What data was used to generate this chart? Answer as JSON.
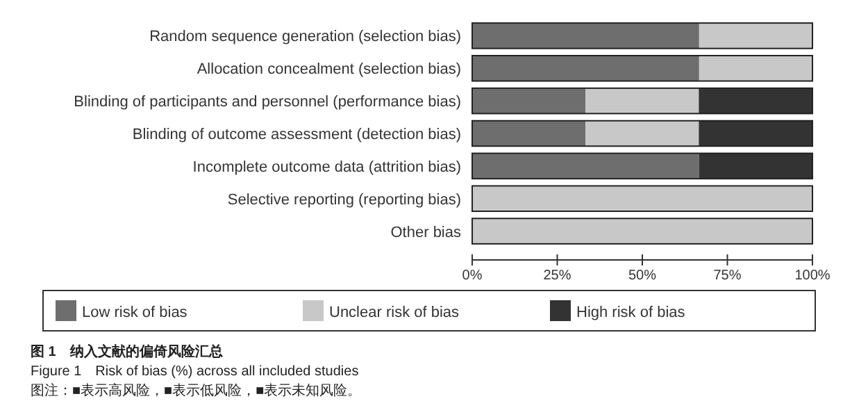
{
  "chart_data": {
    "type": "bar",
    "orientation": "horizontal",
    "stacked": true,
    "title": "图 1　纳入文献的偏倚风险汇总",
    "subtitle": "Figure 1　Risk of bias (%) across all included studies",
    "annotations": [
      "图注：■表示高风险，■表示低风险，■表示未知风险。"
    ],
    "categories": [
      "Random sequence generation (selection bias)",
      "Allocation concealment (selection bias)",
      "Blinding of participants and personnel (performance bias)",
      "Blinding of outcome assessment (detection bias)",
      "Incomplete outcome data (attrition bias)",
      "Selective reporting (reporting bias)",
      "Other bias"
    ],
    "series": [
      {
        "name": "Low risk of bias",
        "color": "#6e6e6e",
        "values": [
          66.7,
          66.7,
          33.3,
          33.3,
          66.7,
          0,
          0
        ]
      },
      {
        "name": "Unclear risk of bias",
        "color": "#c8c8c8",
        "values": [
          33.3,
          33.3,
          33.3,
          33.3,
          0,
          100,
          100
        ]
      },
      {
        "name": "High risk of bias",
        "color": "#333333",
        "values": [
          0,
          0,
          33.3,
          33.3,
          33.3,
          0,
          0
        ]
      }
    ],
    "xlim": [
      0,
      100
    ],
    "xticks": [
      {
        "value": 0,
        "label": "0%"
      },
      {
        "value": 25,
        "label": "25%"
      },
      {
        "value": 50,
        "label": "50%"
      },
      {
        "value": 75,
        "label": "75%"
      },
      {
        "value": 100,
        "label": "100%"
      }
    ],
    "grid": false,
    "legend": "bottom"
  }
}
